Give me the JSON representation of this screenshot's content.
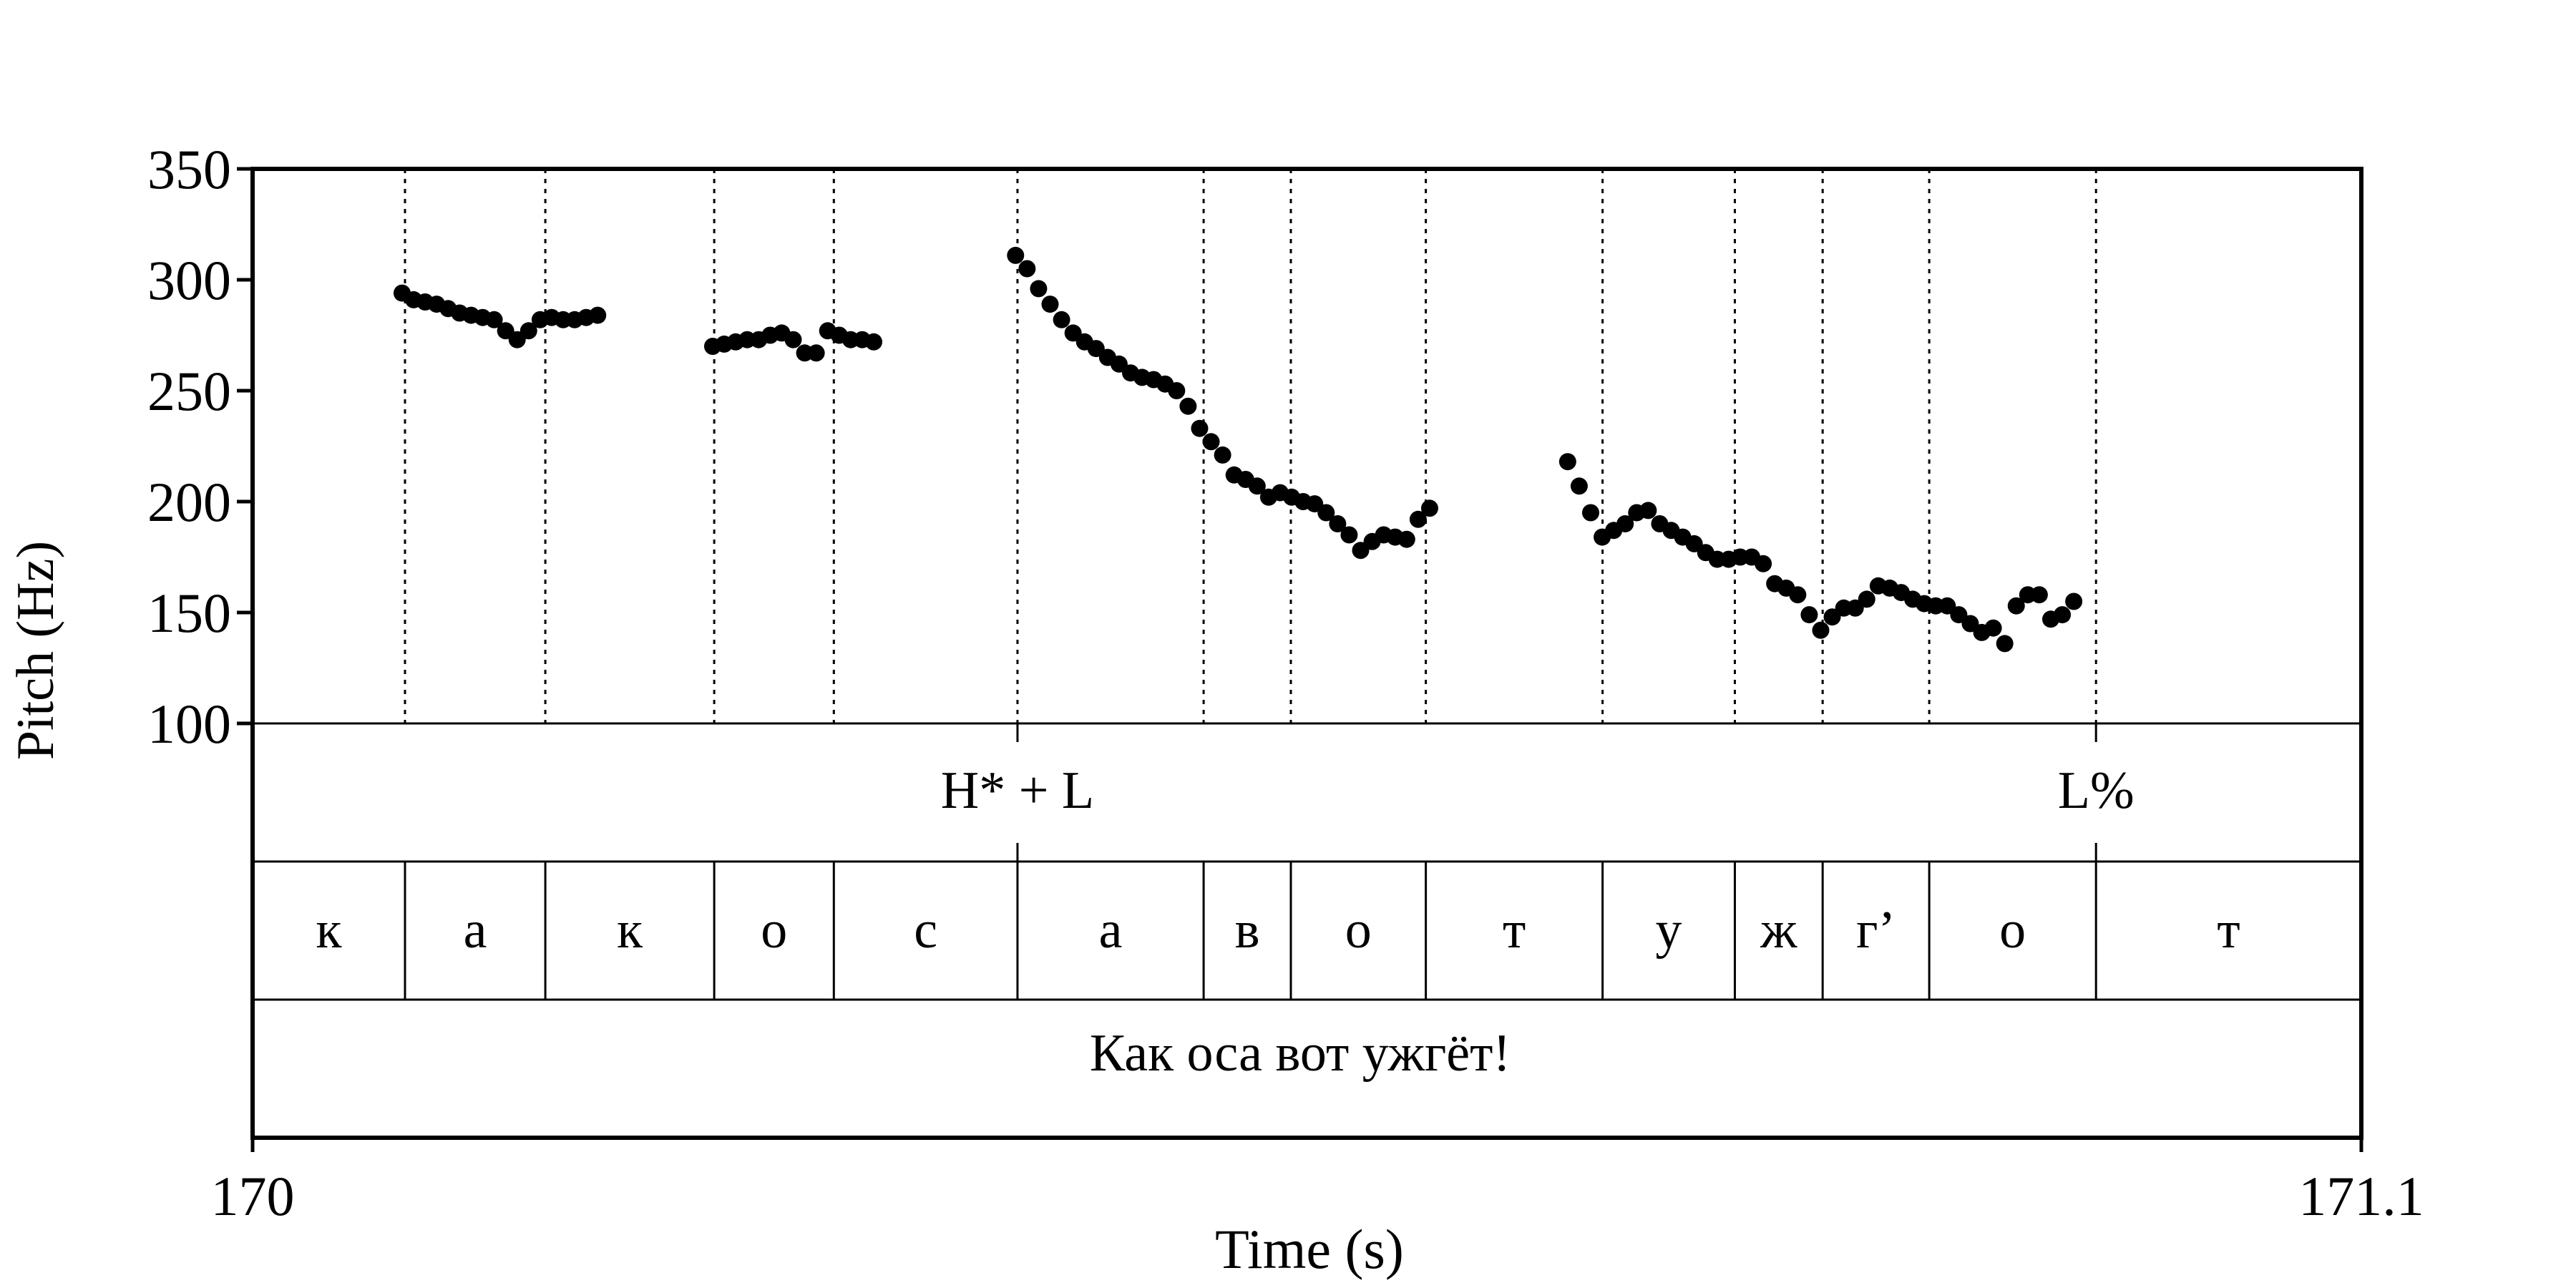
{
  "chart_data": {
    "type": "scatter",
    "title": "",
    "xlabel": "Time (s)",
    "ylabel": "Pitch (Hz)",
    "xlim": [
      170,
      171.1
    ],
    "ylim": [
      100,
      350
    ],
    "x_ticks": [
      "170",
      "171.1"
    ],
    "y_ticks": [
      "350",
      "300",
      "250",
      "200",
      "150",
      "100"
    ],
    "grid": false,
    "colors": {
      "points": "#000000",
      "lines": "#000000",
      "background": "#ffffff"
    },
    "boundaries": [
      170.0795,
      170.1527,
      170.2408,
      170.3032,
      170.399,
      170.4961,
      170.5416,
      170.612,
      170.7042,
      170.7732,
      170.819,
      170.8746,
      170.9616
    ],
    "tones": [
      {
        "label": "H* + L",
        "time": 170.399
      },
      {
        "label": "L%",
        "time": 170.9616
      }
    ],
    "segments": [
      {
        "label": "к",
        "start": 170.0,
        "end": 170.0795
      },
      {
        "label": "а",
        "start": 170.0795,
        "end": 170.1527
      },
      {
        "label": "к",
        "start": 170.1527,
        "end": 170.2408
      },
      {
        "label": "о",
        "start": 170.2408,
        "end": 170.3032
      },
      {
        "label": "с",
        "start": 170.3032,
        "end": 170.399
      },
      {
        "label": "а",
        "start": 170.399,
        "end": 170.4961
      },
      {
        "label": "в",
        "start": 170.4961,
        "end": 170.5416
      },
      {
        "label": "о",
        "start": 170.5416,
        "end": 170.612
      },
      {
        "label": "т",
        "start": 170.612,
        "end": 170.7042
      },
      {
        "label": "у",
        "start": 170.7042,
        "end": 170.7732
      },
      {
        "label": "ж",
        "start": 170.7732,
        "end": 170.819
      },
      {
        "label": "г’",
        "start": 170.819,
        "end": 170.8746
      },
      {
        "label": "о",
        "start": 170.8746,
        "end": 170.9616
      },
      {
        "label": "т",
        "start": 170.9616,
        "end": 171.1
      }
    ],
    "sentence": "Как оса вот ужгёт!",
    "series": [
      {
        "points": [
          [
            170.078,
            294
          ],
          [
            170.084,
            291
          ],
          [
            170.09,
            290
          ],
          [
            170.096,
            289
          ],
          [
            170.102,
            287
          ],
          [
            170.108,
            285
          ],
          [
            170.114,
            284
          ],
          [
            170.12,
            283
          ],
          [
            170.126,
            282
          ],
          [
            170.132,
            277
          ],
          [
            170.138,
            273
          ],
          [
            170.144,
            277
          ],
          [
            170.15,
            282
          ],
          [
            170.156,
            283
          ],
          [
            170.162,
            282
          ],
          [
            170.168,
            282
          ],
          [
            170.174,
            283
          ],
          [
            170.18,
            284
          ],
          [
            170.24,
            270
          ],
          [
            170.246,
            271
          ],
          [
            170.252,
            272
          ],
          [
            170.258,
            273
          ],
          [
            170.264,
            273
          ],
          [
            170.27,
            275
          ],
          [
            170.276,
            276
          ],
          [
            170.282,
            273
          ],
          [
            170.288,
            267
          ],
          [
            170.294,
            267
          ],
          [
            170.3,
            277
          ],
          [
            170.306,
            275
          ],
          [
            170.312,
            273
          ],
          [
            170.318,
            273
          ],
          [
            170.324,
            272
          ],
          [
            170.398,
            311
          ],
          [
            170.404,
            305
          ],
          [
            170.41,
            296
          ],
          [
            170.416,
            289
          ],
          [
            170.422,
            282
          ],
          [
            170.428,
            276
          ],
          [
            170.434,
            272
          ],
          [
            170.44,
            269
          ],
          [
            170.446,
            265
          ],
          [
            170.452,
            262
          ],
          [
            170.458,
            258
          ],
          [
            170.464,
            256
          ],
          [
            170.47,
            255
          ],
          [
            170.476,
            253
          ],
          [
            170.482,
            250
          ],
          [
            170.488,
            243
          ],
          [
            170.494,
            233
          ],
          [
            170.5,
            227
          ],
          [
            170.506,
            221
          ],
          [
            170.512,
            212
          ],
          [
            170.518,
            210
          ],
          [
            170.524,
            207
          ],
          [
            170.53,
            202
          ],
          [
            170.536,
            204
          ],
          [
            170.542,
            202
          ],
          [
            170.548,
            200
          ],
          [
            170.554,
            199
          ],
          [
            170.56,
            195
          ],
          [
            170.566,
            190
          ],
          [
            170.572,
            185
          ],
          [
            170.578,
            178
          ],
          [
            170.584,
            182
          ],
          [
            170.59,
            185
          ],
          [
            170.596,
            184
          ],
          [
            170.602,
            183
          ],
          [
            170.608,
            192
          ],
          [
            170.614,
            197
          ],
          [
            170.686,
            218
          ],
          [
            170.692,
            207
          ],
          [
            170.698,
            195
          ],
          [
            170.704,
            184
          ],
          [
            170.71,
            187
          ],
          [
            170.716,
            190
          ],
          [
            170.722,
            195
          ],
          [
            170.728,
            196
          ],
          [
            170.734,
            190
          ],
          [
            170.74,
            187
          ],
          [
            170.746,
            184
          ],
          [
            170.752,
            181
          ],
          [
            170.758,
            177
          ],
          [
            170.764,
            174
          ],
          [
            170.77,
            174
          ],
          [
            170.776,
            175
          ],
          [
            170.782,
            175
          ],
          [
            170.788,
            172
          ],
          [
            170.794,
            163
          ],
          [
            170.8,
            161
          ],
          [
            170.806,
            158
          ],
          [
            170.812,
            149
          ],
          [
            170.818,
            142
          ],
          [
            170.824,
            148
          ],
          [
            170.83,
            152
          ],
          [
            170.836,
            152
          ],
          [
            170.842,
            156
          ],
          [
            170.848,
            162
          ],
          [
            170.854,
            161
          ],
          [
            170.86,
            159
          ],
          [
            170.866,
            156
          ],
          [
            170.872,
            154
          ],
          [
            170.878,
            153
          ],
          [
            170.884,
            153
          ],
          [
            170.89,
            149
          ],
          [
            170.896,
            145
          ],
          [
            170.902,
            141
          ],
          [
            170.908,
            143
          ],
          [
            170.914,
            136
          ],
          [
            170.92,
            153
          ],
          [
            170.926,
            158
          ],
          [
            170.932,
            158
          ],
          [
            170.938,
            147
          ],
          [
            170.944,
            149
          ],
          [
            170.95,
            155
          ]
        ]
      }
    ]
  }
}
